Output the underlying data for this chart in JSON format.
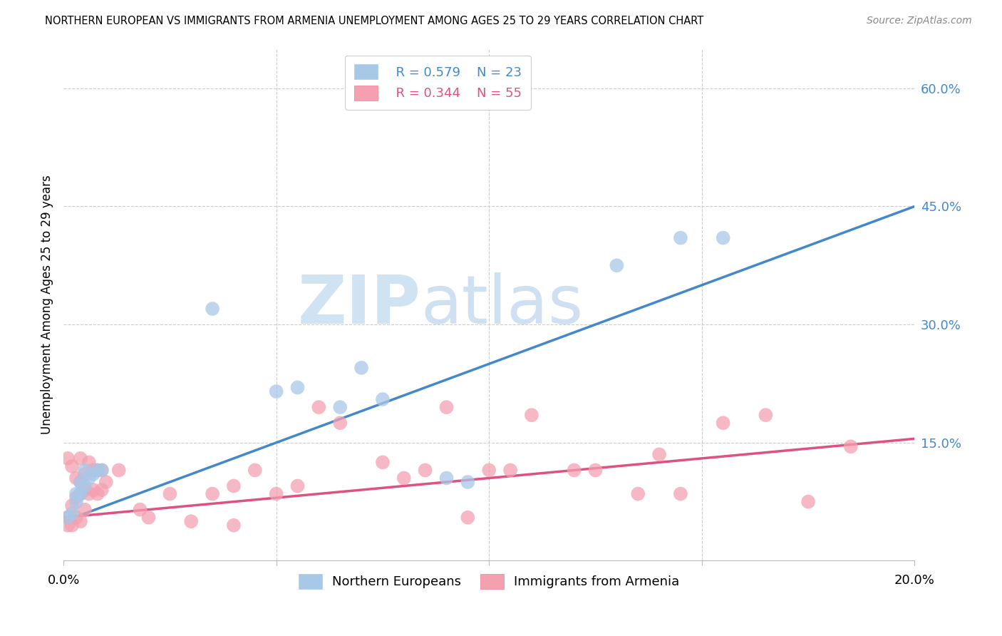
{
  "title": "NORTHERN EUROPEAN VS IMMIGRANTS FROM ARMENIA UNEMPLOYMENT AMONG AGES 25 TO 29 YEARS CORRELATION CHART",
  "source": "Source: ZipAtlas.com",
  "ylabel": "Unemployment Among Ages 25 to 29 years",
  "xlim": [
    0.0,
    0.2
  ],
  "ylim": [
    0.0,
    0.65
  ],
  "xticks": [
    0.0,
    0.05,
    0.1,
    0.15,
    0.2
  ],
  "yticks_right": [
    0.0,
    0.15,
    0.3,
    0.45,
    0.6
  ],
  "ytick_labels_right": [
    "",
    "15.0%",
    "30.0%",
    "45.0%",
    "60.0%"
  ],
  "blue_color": "#a8c8e8",
  "pink_color": "#f4a0b0",
  "blue_line_color": "#4488cc",
  "pink_line_color": "#e05080",
  "legend_R1": "R = 0.579",
  "legend_N1": "N = 23",
  "legend_R2": "R = 0.344",
  "legend_N2": "N = 55",
  "series1_label": "Northern Europeans",
  "series2_label": "Immigrants from Armenia",
  "watermark_zip": "ZIP",
  "watermark_atlas": "atlas",
  "blue_line_x0": 0.0,
  "blue_line_y0": 0.05,
  "blue_line_x1": 0.2,
  "blue_line_y1": 0.45,
  "pink_line_x0": 0.0,
  "pink_line_y0": 0.055,
  "pink_line_x1": 0.2,
  "pink_line_y1": 0.155,
  "blue_scatter_x": [
    0.001,
    0.002,
    0.003,
    0.003,
    0.004,
    0.004,
    0.005,
    0.005,
    0.006,
    0.007,
    0.008,
    0.009,
    0.035,
    0.05,
    0.055,
    0.065,
    0.07,
    0.075,
    0.09,
    0.095,
    0.13,
    0.145,
    0.155
  ],
  "blue_scatter_y": [
    0.055,
    0.06,
    0.075,
    0.085,
    0.085,
    0.1,
    0.095,
    0.115,
    0.105,
    0.11,
    0.115,
    0.115,
    0.32,
    0.215,
    0.22,
    0.195,
    0.245,
    0.205,
    0.105,
    0.1,
    0.375,
    0.41,
    0.41
  ],
  "pink_scatter_x": [
    0.001,
    0.001,
    0.001,
    0.002,
    0.002,
    0.002,
    0.003,
    0.003,
    0.003,
    0.004,
    0.004,
    0.004,
    0.004,
    0.005,
    0.005,
    0.005,
    0.006,
    0.006,
    0.007,
    0.007,
    0.008,
    0.008,
    0.009,
    0.009,
    0.01,
    0.013,
    0.018,
    0.02,
    0.025,
    0.03,
    0.035,
    0.04,
    0.04,
    0.045,
    0.05,
    0.055,
    0.06,
    0.065,
    0.075,
    0.08,
    0.085,
    0.09,
    0.095,
    0.1,
    0.105,
    0.11,
    0.12,
    0.125,
    0.135,
    0.14,
    0.145,
    0.155,
    0.165,
    0.175,
    0.185
  ],
  "pink_scatter_y": [
    0.045,
    0.055,
    0.13,
    0.045,
    0.07,
    0.12,
    0.055,
    0.08,
    0.105,
    0.05,
    0.085,
    0.1,
    0.13,
    0.065,
    0.09,
    0.11,
    0.085,
    0.125,
    0.09,
    0.115,
    0.085,
    0.115,
    0.09,
    0.115,
    0.1,
    0.115,
    0.065,
    0.055,
    0.085,
    0.05,
    0.085,
    0.045,
    0.095,
    0.115,
    0.085,
    0.095,
    0.195,
    0.175,
    0.125,
    0.105,
    0.115,
    0.195,
    0.055,
    0.115,
    0.115,
    0.185,
    0.115,
    0.115,
    0.085,
    0.135,
    0.085,
    0.175,
    0.185,
    0.075,
    0.145
  ]
}
